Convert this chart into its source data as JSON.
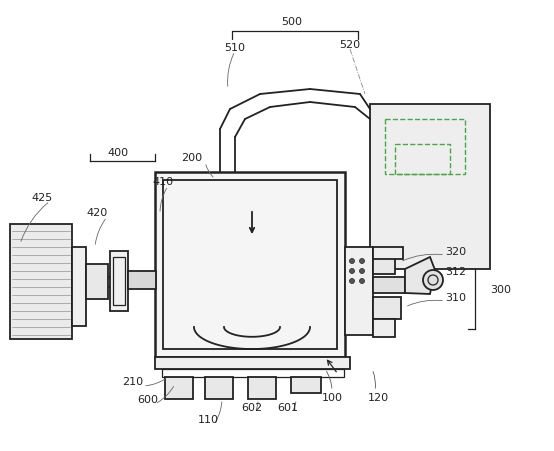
{
  "bg_color": "#ffffff",
  "line_color": "#222222",
  "label_color": "#222222",
  "fig_width": 5.54,
  "fig_height": 4.52,
  "dpi": 100,
  "label_fs": 8.0
}
